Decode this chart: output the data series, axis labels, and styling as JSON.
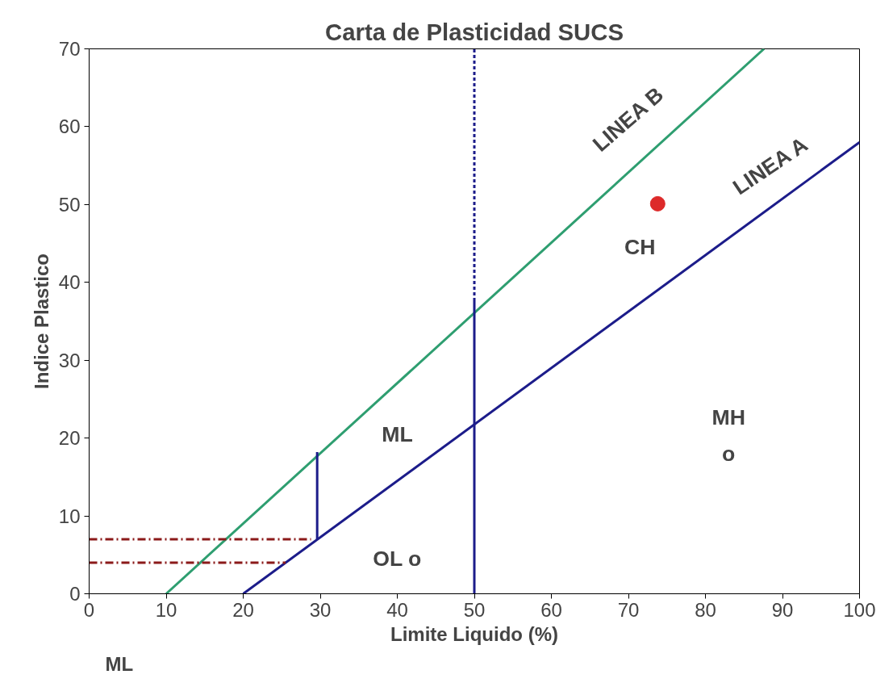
{
  "chart_data": {
    "type": "line",
    "title": "Carta de Plasticidad SUCS",
    "xlabel": "Limite Liquido (%)",
    "ylabel": "Indice Plastico",
    "xlim": [
      0,
      100
    ],
    "ylim": [
      0,
      70
    ],
    "xticks": [
      0,
      10,
      20,
      30,
      40,
      50,
      60,
      70,
      80,
      90,
      100
    ],
    "yticks": [
      0,
      10,
      20,
      30,
      40,
      50,
      60,
      70
    ],
    "grid": false,
    "series": [
      {
        "color": "#2e9e70",
        "x": [
          10,
          87.6
        ],
        "values": [
          0,
          70
        ],
        "line_style": "solid"
      },
      {
        "color": "#1c1c8a",
        "x": [
          20,
          100
        ],
        "values": [
          0,
          58
        ],
        "line_style": "solid"
      },
      {
        "color": "#1c1c8a",
        "x": [
          50,
          50
        ],
        "values": [
          0,
          37.6
        ],
        "line_style": "solid"
      },
      {
        "color": "#1c1c8a",
        "x": [
          50,
          50
        ],
        "values": [
          37.6,
          70
        ],
        "line_style": "dashed"
      },
      {
        "color": "#1c1c8a",
        "x": [
          29.6,
          29.6
        ],
        "values": [
          7,
          18.2
        ],
        "line_style": "solid"
      },
      {
        "color": "#8b1a1a",
        "x": [
          0,
          28.8
        ],
        "values": [
          7,
          7
        ],
        "line_style": "dashdot"
      },
      {
        "color": "#8b1a1a",
        "x": [
          0,
          25.5
        ],
        "values": [
          4,
          4
        ],
        "line_style": "dashdot"
      },
      {
        "type": "scatter",
        "color": "#dd2a2a",
        "x": [
          73.8
        ],
        "values": [
          50.1
        ],
        "marker": "circle"
      }
    ],
    "annotations": [
      "LINEA B",
      "LINEA A",
      "CH",
      "ML",
      "MH",
      "o",
      "OL o",
      "ML"
    ]
  }
}
